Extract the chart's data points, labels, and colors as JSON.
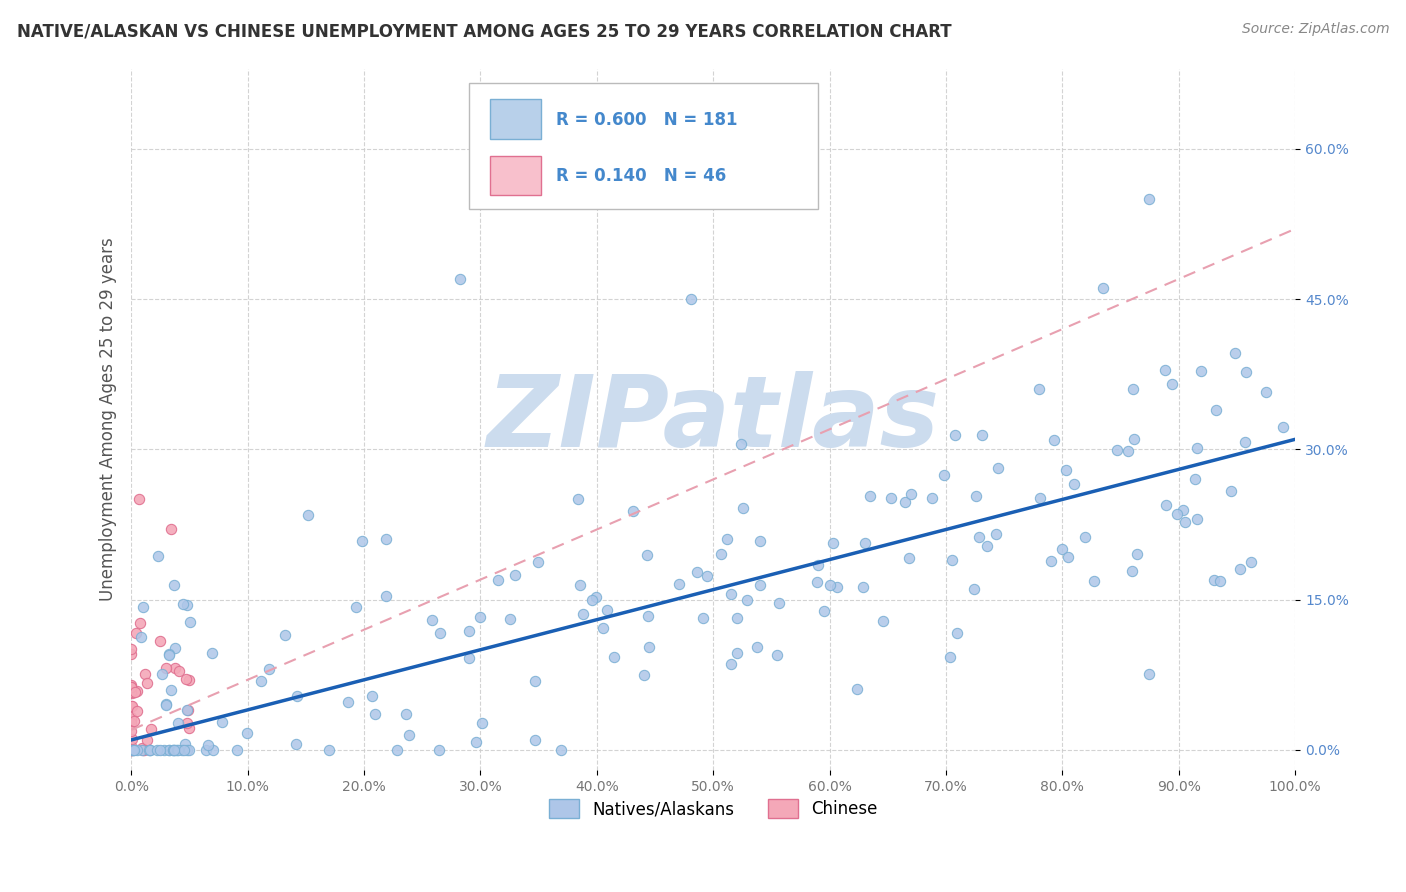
{
  "title": "NATIVE/ALASKAN VS CHINESE UNEMPLOYMENT AMONG AGES 25 TO 29 YEARS CORRELATION CHART",
  "source": "Source: ZipAtlas.com",
  "ylabel": "Unemployment Among Ages 25 to 29 years",
  "xlim": [
    0,
    1.0
  ],
  "ylim": [
    -0.02,
    0.68
  ],
  "xticks": [
    0.0,
    0.1,
    0.2,
    0.3,
    0.4,
    0.5,
    0.6,
    0.7,
    0.8,
    0.9,
    1.0
  ],
  "xticklabels": [
    "0.0%",
    "10.0%",
    "20.0%",
    "30.0%",
    "40.0%",
    "50.0%",
    "60.0%",
    "70.0%",
    "80.0%",
    "90.0%",
    "100.0%"
  ],
  "yticks": [
    0.0,
    0.15,
    0.3,
    0.45,
    0.6
  ],
  "yticklabels": [
    "0.0%",
    "15.0%",
    "30.0%",
    "45.0%",
    "60.0%"
  ],
  "blue_color": "#aec6e8",
  "blue_edge": "#7aafd4",
  "pink_color": "#f4a8b8",
  "pink_edge": "#e07090",
  "blue_line_color": "#1a5fb4",
  "pink_line_color": "#e8a0b0",
  "legend_blue_fill": "#b8d0ea",
  "legend_pink_fill": "#f8c0cc",
  "R_blue": 0.6,
  "N_blue": 181,
  "R_pink": 0.14,
  "N_pink": 46,
  "watermark": "ZIPatlas",
  "watermark_color": "#ccdcee",
  "blue_line_slope": 0.3,
  "blue_line_intercept": 0.01,
  "pink_line_slope": 0.5,
  "pink_line_intercept": 0.02
}
